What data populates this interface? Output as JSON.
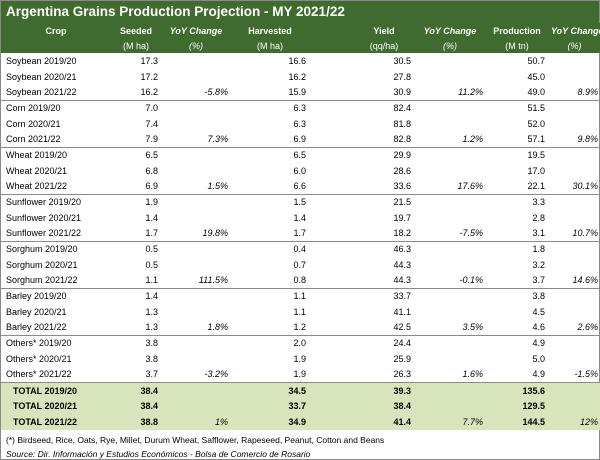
{
  "title": "Argentina Grains Production Projection - MY 2021/22",
  "headers": {
    "crop": "Crop",
    "seeded": "Seeded",
    "seeded_unit": "(M ha)",
    "yoy": "YoY Change",
    "pct": "(%)",
    "harvested": "Harvested",
    "harvested_unit": "(M ha)",
    "yield": "Yield",
    "yield_unit": "(qq/ha)",
    "production": "Production",
    "production_unit": "(M tn)"
  },
  "rows": [
    {
      "crop": "Soybean 2019/20",
      "seeded": "17.3",
      "seeded_chg": "",
      "harvested": "16.6",
      "harvested_chg": "",
      "yield": "30.5",
      "yield_chg": "",
      "production": "50.7",
      "production_chg": ""
    },
    {
      "crop": "Soybean 2020/21",
      "seeded": "17.2",
      "seeded_chg": "",
      "harvested": "16.2",
      "harvested_chg": "",
      "yield": "27.8",
      "yield_chg": "",
      "production": "45.0",
      "production_chg": ""
    },
    {
      "crop": "Soybean 2021/22",
      "seeded": "16.2",
      "seeded_chg": "-5.8%",
      "harvested": "15.9",
      "harvested_chg": "",
      "yield": "30.9",
      "yield_chg": "11.2%",
      "production": "49.0",
      "production_chg": "8.9%"
    },
    {
      "crop": "Corn 2019/20",
      "seeded": "7.0",
      "seeded_chg": "",
      "harvested": "6.3",
      "harvested_chg": "",
      "yield": "82.4",
      "yield_chg": "",
      "production": "51.5",
      "production_chg": ""
    },
    {
      "crop": "Corn 2020/21",
      "seeded": "7.4",
      "seeded_chg": "",
      "harvested": "6.3",
      "harvested_chg": "",
      "yield": "81.8",
      "yield_chg": "",
      "production": "52.0",
      "production_chg": ""
    },
    {
      "crop": "Corn 2021/22",
      "seeded": "7.9",
      "seeded_chg": "7.3%",
      "harvested": "6.9",
      "harvested_chg": "",
      "yield": "82.8",
      "yield_chg": "1.2%",
      "production": "57.1",
      "production_chg": "9.8%"
    },
    {
      "crop": "Wheat 2019/20",
      "seeded": "6.5",
      "seeded_chg": "",
      "harvested": "6.5",
      "harvested_chg": "",
      "yield": "29.9",
      "yield_chg": "",
      "production": "19.5",
      "production_chg": ""
    },
    {
      "crop": "Wheat 2020/21",
      "seeded": "6.8",
      "seeded_chg": "",
      "harvested": "6.0",
      "harvested_chg": "",
      "yield": "28.6",
      "yield_chg": "",
      "production": "17.0",
      "production_chg": ""
    },
    {
      "crop": "Wheat 2021/22",
      "seeded": "6.9",
      "seeded_chg": "1.5%",
      "harvested": "6.6",
      "harvested_chg": "",
      "yield": "33.6",
      "yield_chg": "17.6%",
      "production": "22.1",
      "production_chg": "30.1%"
    },
    {
      "crop": "Sunflower 2019/20",
      "seeded": "1.9",
      "seeded_chg": "",
      "harvested": "1.5",
      "harvested_chg": "",
      "yield": "21.5",
      "yield_chg": "",
      "production": "3.3",
      "production_chg": ""
    },
    {
      "crop": "Sunflower 2020/21",
      "seeded": "1.4",
      "seeded_chg": "",
      "harvested": "1.4",
      "harvested_chg": "",
      "yield": "19.7",
      "yield_chg": "",
      "production": "2.8",
      "production_chg": ""
    },
    {
      "crop": "Sunflower 2021/22",
      "seeded": "1.7",
      "seeded_chg": "19.8%",
      "harvested": "1.7",
      "harvested_chg": "",
      "yield": "18.2",
      "yield_chg": "-7.5%",
      "production": "3.1",
      "production_chg": "10.7%"
    },
    {
      "crop": "Sorghum 2019/20",
      "seeded": "0.5",
      "seeded_chg": "",
      "harvested": "0.4",
      "harvested_chg": "",
      "yield": "46.3",
      "yield_chg": "",
      "production": "1.8",
      "production_chg": ""
    },
    {
      "crop": "Sorghum 2020/21",
      "seeded": "0.5",
      "seeded_chg": "",
      "harvested": "0.7",
      "harvested_chg": "",
      "yield": "44.3",
      "yield_chg": "",
      "production": "3.2",
      "production_chg": ""
    },
    {
      "crop": "Sorghum 2021/22",
      "seeded": "1.1",
      "seeded_chg": "111.5%",
      "harvested": "0.8",
      "harvested_chg": "",
      "yield": "44.3",
      "yield_chg": "-0.1%",
      "production": "3.7",
      "production_chg": "14.6%"
    },
    {
      "crop": "Barley 2019/20",
      "seeded": "1.4",
      "seeded_chg": "",
      "harvested": "1.1",
      "harvested_chg": "",
      "yield": "33.7",
      "yield_chg": "",
      "production": "3.8",
      "production_chg": ""
    },
    {
      "crop": "Barley 2020/21",
      "seeded": "1.3",
      "seeded_chg": "",
      "harvested": "1.1",
      "harvested_chg": "",
      "yield": "41.1",
      "yield_chg": "",
      "production": "4.5",
      "production_chg": ""
    },
    {
      "crop": "Barley 2021/22",
      "seeded": "1.3",
      "seeded_chg": "1.8%",
      "harvested": "1.2",
      "harvested_chg": "",
      "yield": "42.5",
      "yield_chg": "3.5%",
      "production": "4.6",
      "production_chg": "2.6%"
    },
    {
      "crop": "Others* 2019/20",
      "seeded": "3.8",
      "seeded_chg": "",
      "harvested": "2.0",
      "harvested_chg": "",
      "yield": "24.4",
      "yield_chg": "",
      "production": "4.9",
      "production_chg": ""
    },
    {
      "crop": "Others* 2020/21",
      "seeded": "3.8",
      "seeded_chg": "",
      "harvested": "1.9",
      "harvested_chg": "",
      "yield": "25.9",
      "yield_chg": "",
      "production": "5.0",
      "production_chg": ""
    },
    {
      "crop": "Others* 2021/22",
      "seeded": "3.7",
      "seeded_chg": "-3.2%",
      "harvested": "1.9",
      "harvested_chg": "",
      "yield": "26.3",
      "yield_chg": "1.6%",
      "production": "4.9",
      "production_chg": "-1.5%"
    }
  ],
  "totals": [
    {
      "crop": "TOTAL 2019/20",
      "seeded": "38.4",
      "seeded_chg": "",
      "harvested": "34.5",
      "harvested_chg": "",
      "yield": "39.3",
      "yield_chg": "",
      "production": "135.6",
      "production_chg": ""
    },
    {
      "crop": "TOTAL 2020/21",
      "seeded": "38.4",
      "seeded_chg": "",
      "harvested": "33.7",
      "harvested_chg": "",
      "yield": "38.4",
      "yield_chg": "",
      "production": "129.5",
      "production_chg": ""
    },
    {
      "crop": "TOTAL 2021/22",
      "seeded": "38.8",
      "seeded_chg": "1%",
      "harvested": "34.9",
      "harvested_chg": "",
      "yield": "41.4",
      "yield_chg": "7.7%",
      "production": "144.5",
      "production_chg": "12%"
    }
  ],
  "footnote": "(*) Birdseed, Rice, Oats, Rye, Millet, Durum Wheat, Safflower, Rapeseed, Peanut, Cotton and Beans",
  "source": "Source: Dir. Información y Estudios Económicos - Bolsa de Comercio de Rosario",
  "colors": {
    "header_bg": "#3f6b2f",
    "total_bg": "#d8e4bc"
  }
}
